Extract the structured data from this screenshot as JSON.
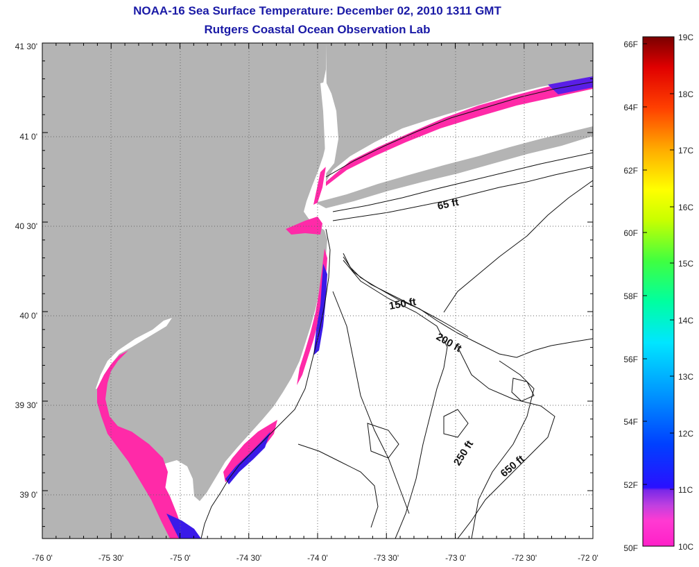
{
  "header": {
    "title": "NOAA-16 Sea Surface Temperature:  December 02, 2010 1311 GMT",
    "subtitle": "Rutgers Coastal Ocean Observation Lab"
  },
  "map": {
    "lat_labels": [
      "41 30'",
      "41 0'",
      "40 30'",
      "40 0'",
      "39 30'",
      "39 0'"
    ],
    "lon_labels": [
      "-76 0'",
      "-75 30'",
      "-75 0'",
      "-74 30'",
      "-74 0'",
      "-73 30'",
      "-73 0'",
      "-72 30'",
      "-72 0'"
    ],
    "contour_labels": [
      "65 ft",
      "150 ft",
      "200 ft",
      "250 ft",
      "650 ft"
    ],
    "colors": {
      "land": "#b4b4b4",
      "ocean_no_data": "#ffffff",
      "sst_pink": "#ff2aa8",
      "sst_purple": "#8a2be2",
      "sst_blue": "#2020ff"
    }
  },
  "colorbar": {
    "fahrenheit_labels": [
      "66F",
      "64F",
      "62F",
      "60F",
      "58F",
      "56F",
      "54F",
      "52F",
      "50F"
    ],
    "celsius_labels": [
      "19C",
      "18C",
      "17C",
      "16C",
      "15C",
      "14C",
      "13C",
      "12C",
      "11C",
      "10C"
    ]
  }
}
